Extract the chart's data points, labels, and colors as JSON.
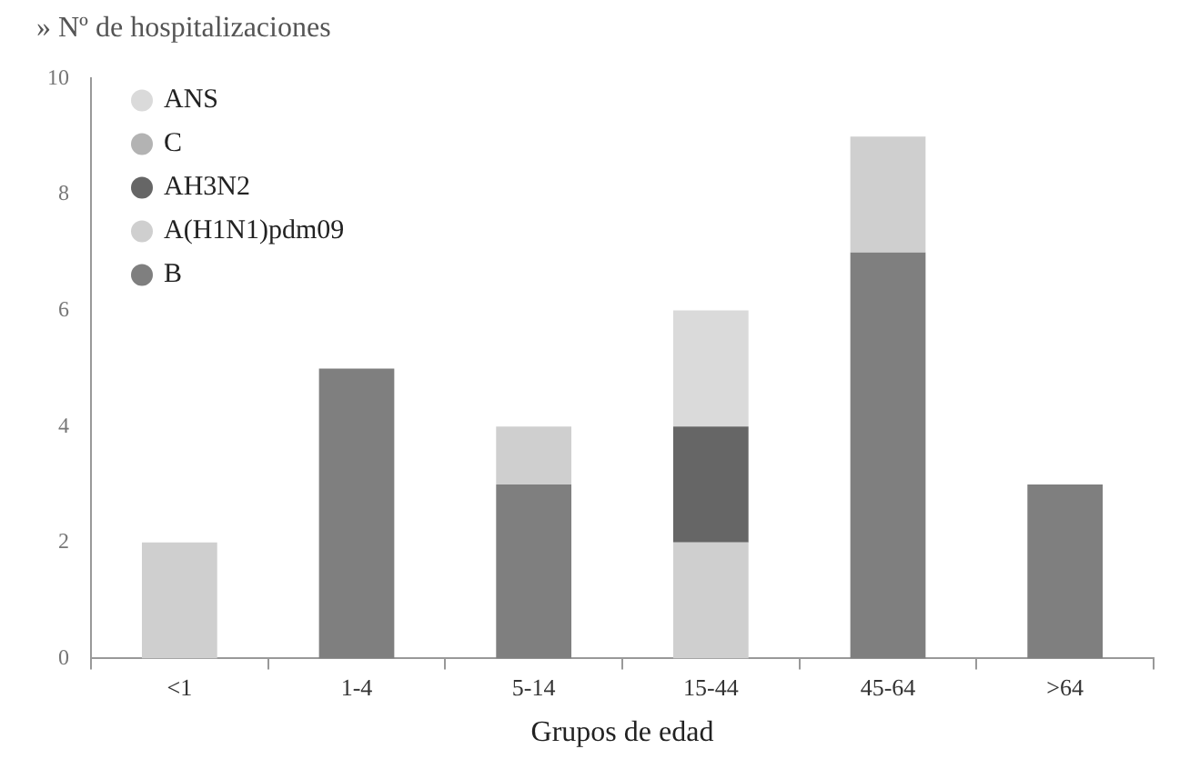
{
  "chart_data": {
    "type": "bar",
    "stacked": true,
    "title": "» Nº de hospitalizaciones",
    "xlabel": "Grupos de edad",
    "categories": [
      "<1",
      "1-4",
      "5-14",
      "15-44",
      "45-64",
      ">64"
    ],
    "series": [
      {
        "name": "B",
        "color": "#7f7f7f",
        "values": [
          null,
          5,
          3,
          null,
          7,
          3
        ]
      },
      {
        "name": "A(H1N1)pdm09",
        "color": "#cfcfcf",
        "values": [
          2,
          null,
          1,
          2,
          2,
          null
        ]
      },
      {
        "name": "AH3N2",
        "color": "#666666",
        "values": [
          null,
          null,
          null,
          2,
          null,
          null
        ]
      },
      {
        "name": "C",
        "color": "#b3b3b3",
        "values": [
          null,
          null,
          null,
          null,
          null,
          null
        ]
      },
      {
        "name": "ANS",
        "color": "#dadada",
        "values": [
          null,
          null,
          null,
          2,
          null,
          null
        ]
      }
    ],
    "ylim": [
      0,
      10
    ],
    "yticks": [
      0,
      2,
      4,
      6,
      8,
      10
    ],
    "grid": false,
    "legend": "top left"
  }
}
